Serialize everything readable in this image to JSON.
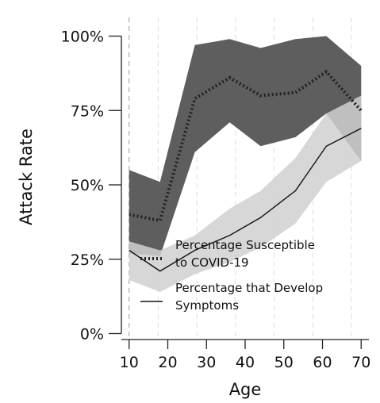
{
  "chart_data": {
    "type": "line",
    "xlabel": "Age",
    "ylabel": "Attack Rate",
    "xlim": [
      8,
      72
    ],
    "ylim": [
      -0.02,
      1.02
    ],
    "x_ticks": [
      10,
      20,
      30,
      40,
      50,
      60,
      70
    ],
    "y_ticks": [
      {
        "value": 0.0,
        "label": "0%"
      },
      {
        "value": 0.25,
        "label": "25%"
      },
      {
        "value": 0.5,
        "label": "50%"
      },
      {
        "value": 0.75,
        "label": "75%"
      },
      {
        "value": 1.0,
        "label": "100%"
      }
    ],
    "vertical_dashed_grid_x": [
      10,
      17.5,
      27.5,
      37.5,
      47.5,
      57.5,
      67.5
    ],
    "series": [
      {
        "name": "Percentage Susceptible to COVID-19",
        "legend_lines": [
          "Percentage Susceptible",
          "to COVID-19"
        ],
        "style": "dotted",
        "color": "#222222",
        "band_color": "#555555",
        "x": [
          10,
          18,
          27,
          36,
          44,
          53,
          61,
          70
        ],
        "y": [
          0.4,
          0.38,
          0.79,
          0.86,
          0.8,
          0.81,
          0.88,
          0.75
        ],
        "lower": [
          0.27,
          0.26,
          0.61,
          0.71,
          0.63,
          0.66,
          0.74,
          0.58
        ],
        "upper": [
          0.55,
          0.51,
          0.97,
          0.99,
          0.96,
          0.99,
          1.0,
          0.9
        ]
      },
      {
        "name": "Percentage that Develop Symptoms",
        "legend_lines": [
          "Percentage that Develop",
          "Symptoms"
        ],
        "style": "solid",
        "color": "#111111",
        "band_color": "#d0d0d0",
        "x": [
          10,
          18,
          27,
          36,
          44,
          53,
          61,
          70
        ],
        "y": [
          0.28,
          0.21,
          0.28,
          0.33,
          0.39,
          0.48,
          0.63,
          0.69
        ],
        "lower": [
          0.18,
          0.14,
          0.2,
          0.24,
          0.29,
          0.37,
          0.51,
          0.58
        ],
        "upper": [
          0.31,
          0.28,
          0.33,
          0.42,
          0.48,
          0.59,
          0.74,
          0.8
        ]
      }
    ],
    "legend_position": "lower-left"
  }
}
